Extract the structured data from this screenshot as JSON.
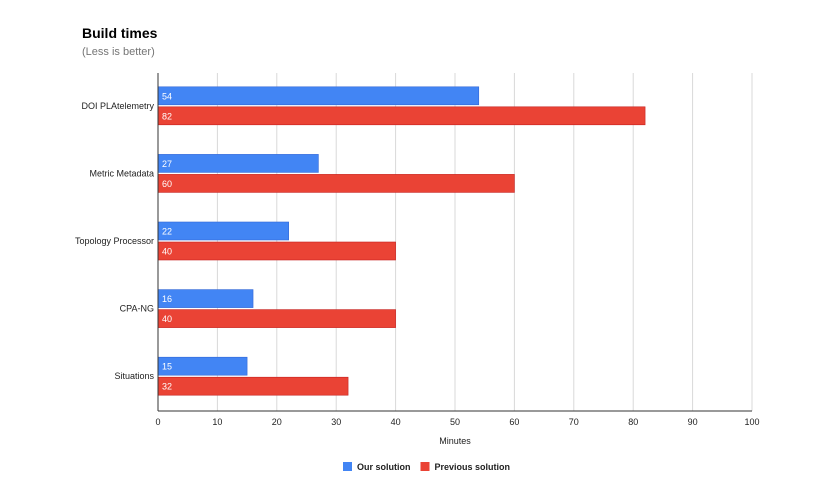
{
  "chart_data": {
    "type": "bar",
    "orientation": "horizontal",
    "title": "Build times",
    "subtitle": "(Less is better)",
    "xlabel": "Minutes",
    "ylabel": "",
    "xlim": [
      0,
      100
    ],
    "xticks": [
      0,
      10,
      20,
      30,
      40,
      50,
      60,
      70,
      80,
      90,
      100
    ],
    "grid": true,
    "legend_position": "bottom",
    "categories": [
      "DOI PLAtelemetry",
      "Metric Metadata",
      "Topology Processor",
      "CPA-NG",
      "Situations"
    ],
    "series": [
      {
        "name": "Our solution",
        "color": "#4285f4",
        "values": [
          54,
          27,
          22,
          16,
          15
        ]
      },
      {
        "name": "Previous solution",
        "color": "#ea4335",
        "values": [
          82,
          60,
          40,
          40,
          32
        ]
      }
    ]
  }
}
